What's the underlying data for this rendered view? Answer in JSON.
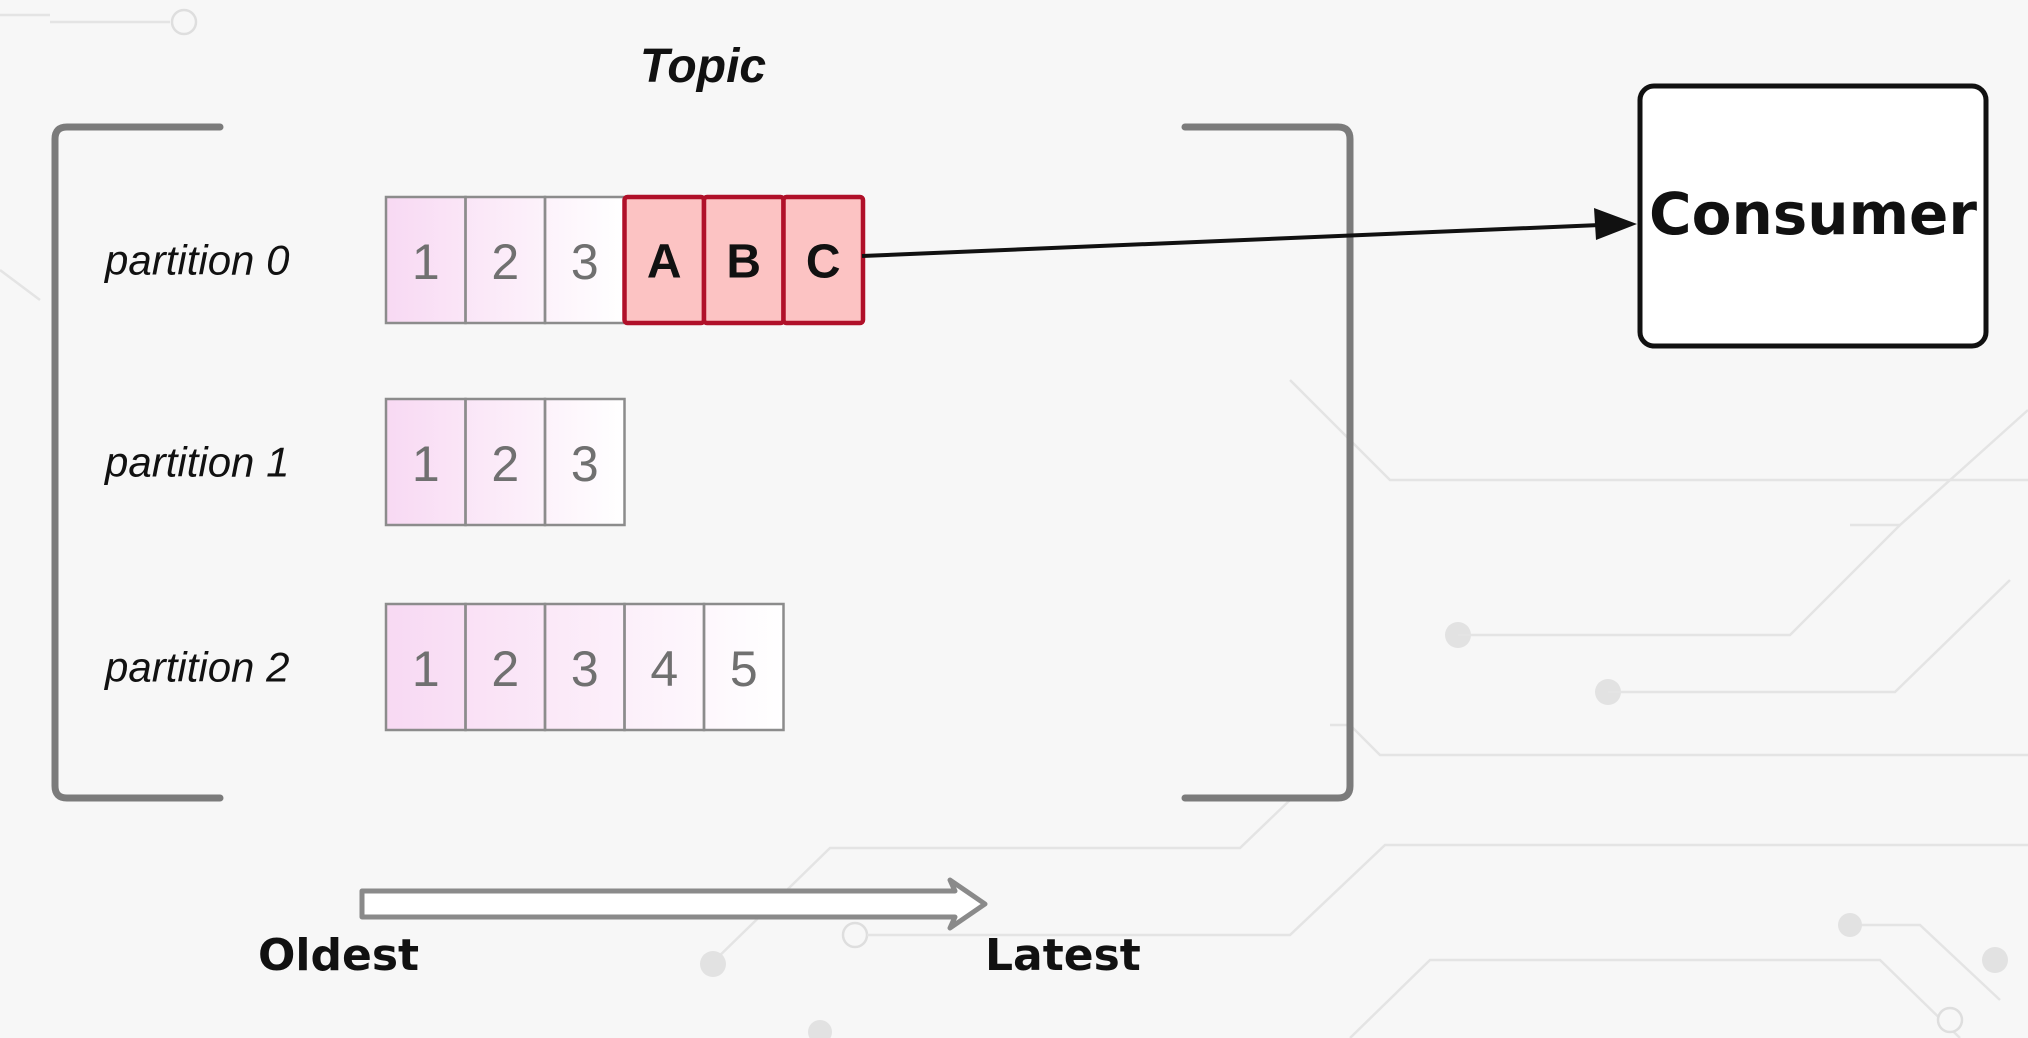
{
  "topic": {
    "title": "Topic"
  },
  "partitions": [
    {
      "label": "partition 0",
      "messages": [
        "1",
        "2",
        "3",
        "A",
        "B",
        "C"
      ],
      "highlighted": [
        "A",
        "B",
        "C"
      ]
    },
    {
      "label": "partition 1",
      "messages": [
        "1",
        "2",
        "3"
      ],
      "highlighted": []
    },
    {
      "label": "partition 2",
      "messages": [
        "1",
        "2",
        "3",
        "4",
        "5"
      ],
      "highlighted": []
    }
  ],
  "consumer": {
    "label": "Consumer"
  },
  "timeline": {
    "start_label": "Oldest",
    "end_label": "Latest"
  },
  "colors": {
    "message_fill": "#f8d9f3",
    "highlight_fill": "#fcc3c3",
    "highlight_border": "#b01029",
    "bracket": "#7b7b7b"
  }
}
